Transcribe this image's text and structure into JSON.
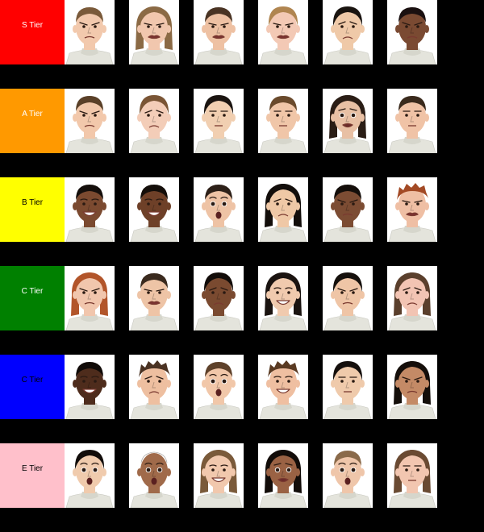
{
  "tiers": [
    {
      "label": "S Tier",
      "color": "#ff0000",
      "text_color": "#ffffff",
      "faces": [
        {
          "expression": "angry",
          "skin": "#f2c9ad",
          "hair": "#7a5a3a",
          "hair_style": "short"
        },
        {
          "expression": "disgust",
          "skin": "#f1c7ae",
          "hair": "#8b6a45",
          "hair_style": "long"
        },
        {
          "expression": "disgust",
          "skin": "#eec1a3",
          "hair": "#4a3424",
          "hair_style": "short"
        },
        {
          "expression": "disgust",
          "skin": "#f3c9b5",
          "hair": "#b08550",
          "hair_style": "medium"
        },
        {
          "expression": "sad",
          "skin": "#efc9a8",
          "hair": "#1a1410",
          "hair_style": "medium"
        },
        {
          "expression": "angry",
          "skin": "#7a4a32",
          "hair": "#1a1010",
          "hair_style": "short"
        }
      ]
    },
    {
      "label": "A Tier",
      "color": "#ff9900",
      "text_color": "#ffffff",
      "faces": [
        {
          "expression": "angry",
          "skin": "#f2c8ab",
          "hair": "#5a4028",
          "hair_style": "short"
        },
        {
          "expression": "sad",
          "skin": "#f3cdb8",
          "hair": "#7a5535",
          "hair_style": "medium"
        },
        {
          "expression": "neutral",
          "skin": "#f1cfb1",
          "hair": "#1a1410",
          "hair_style": "medium"
        },
        {
          "expression": "neutral",
          "skin": "#f0c6a8",
          "hair": "#6a4a2c",
          "hair_style": "short"
        },
        {
          "expression": "fear",
          "skin": "#e8c0a4",
          "hair": "#2a1d15",
          "hair_style": "long"
        },
        {
          "expression": "neutral",
          "skin": "#f0c3a6",
          "hair": "#3a2a1c",
          "hair_style": "short"
        }
      ]
    },
    {
      "label": "B Tier",
      "color": "#ffff00",
      "text_color": "#000000",
      "faces": [
        {
          "expression": "happy",
          "skin": "#7b4a30",
          "hair": "#150f0c",
          "hair_style": "short"
        },
        {
          "expression": "happy",
          "skin": "#6e4028",
          "hair": "#140e0a",
          "hair_style": "short"
        },
        {
          "expression": "surprise",
          "skin": "#eec3a5",
          "hair": "#2d2018",
          "hair_style": "short"
        },
        {
          "expression": "sad",
          "skin": "#efc8a6",
          "hair": "#130e0b",
          "hair_style": "long"
        },
        {
          "expression": "angry",
          "skin": "#7c4c33",
          "hair": "#140e0a",
          "hair_style": "short"
        },
        {
          "expression": "disgust",
          "skin": "#efbfa4",
          "hair": "#a34a25",
          "hair_style": "messy"
        }
      ]
    },
    {
      "label": "C Tier",
      "color": "#008000",
      "text_color": "#ffffff",
      "faces": [
        {
          "expression": "angry",
          "skin": "#f1c6ad",
          "hair": "#b2552a",
          "hair_style": "long"
        },
        {
          "expression": "disgust",
          "skin": "#eec4a6",
          "hair": "#3a2a1e",
          "hair_style": "short"
        },
        {
          "expression": "sad",
          "skin": "#7a4a30",
          "hair": "#120c09",
          "hair_style": "medium"
        },
        {
          "expression": "happy",
          "skin": "#f0caae",
          "hair": "#1a1310",
          "hair_style": "long"
        },
        {
          "expression": "angry",
          "skin": "#efc5a6",
          "hair": "#15100c",
          "hair_style": "medium"
        },
        {
          "expression": "sad",
          "skin": "#f2c4b3",
          "hair": "#5a3f2c",
          "hair_style": "long"
        }
      ]
    },
    {
      "label": "C Tier",
      "color": "#0000ff",
      "text_color": "#000000",
      "faces": [
        {
          "expression": "happy",
          "skin": "#4e2c1c",
          "hair": "#110b08",
          "hair_style": "short"
        },
        {
          "expression": "sad",
          "skin": "#eebfa0",
          "hair": "#4a3222",
          "hair_style": "messy"
        },
        {
          "expression": "surprise",
          "skin": "#f1c7a9",
          "hair": "#5e412a",
          "hair_style": "short"
        },
        {
          "expression": "happy",
          "skin": "#efbfa1",
          "hair": "#5a3a22",
          "hair_style": "messy"
        },
        {
          "expression": "neutral",
          "skin": "#efcaab",
          "hair": "#140f0c",
          "hair_style": "medium"
        },
        {
          "expression": "angry",
          "skin": "#c48a66",
          "hair": "#140e0a",
          "hair_style": "long"
        }
      ]
    },
    {
      "label": "E Tier",
      "color": "#ffc0cb",
      "text_color": "#000000",
      "faces": [
        {
          "expression": "surprise",
          "skin": "#f0cbad",
          "hair": "#120d0a",
          "hair_style": "medium"
        },
        {
          "expression": "surprise",
          "skin": "#a06a4a",
          "hair": "#1b120c",
          "hair_style": "bald"
        },
        {
          "expression": "happy",
          "skin": "#f1c8ad",
          "hair": "#7a5a3a",
          "hair_style": "long"
        },
        {
          "expression": "fear",
          "skin": "#9a6244",
          "hair": "#120c09",
          "hair_style": "long"
        },
        {
          "expression": "surprise",
          "skin": "#efc6aa",
          "hair": "#8a6a4a",
          "hair_style": "short"
        },
        {
          "expression": "neutral",
          "skin": "#f2c6b0",
          "hair": "#6a4a32",
          "hair_style": "long"
        }
      ]
    }
  ]
}
